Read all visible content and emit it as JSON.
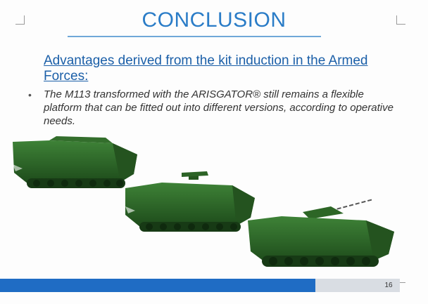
{
  "slide": {
    "title": "CONCLUSION",
    "subtitle": "Advantages derived from the kit induction in the Armed Forces:",
    "bullet_marker": "•",
    "bullet_text": "The M113 transformed with the ARISGATOR® still remains a flexible platform that can be fitted out into different versions, according to operative needs.",
    "page_number": "16"
  },
  "colors": {
    "title": "#2a7cc7",
    "subtitle": "#1b5fa8",
    "footer_bar": "#1f6cc4",
    "footer_bar_light": "#d9dde3",
    "vehicle_green": "#2f6b2a"
  },
  "images": {
    "vehicles": [
      "amphibious-apc-icon",
      "amphibious-apc-turret-icon",
      "ifv-turret-icon"
    ]
  }
}
